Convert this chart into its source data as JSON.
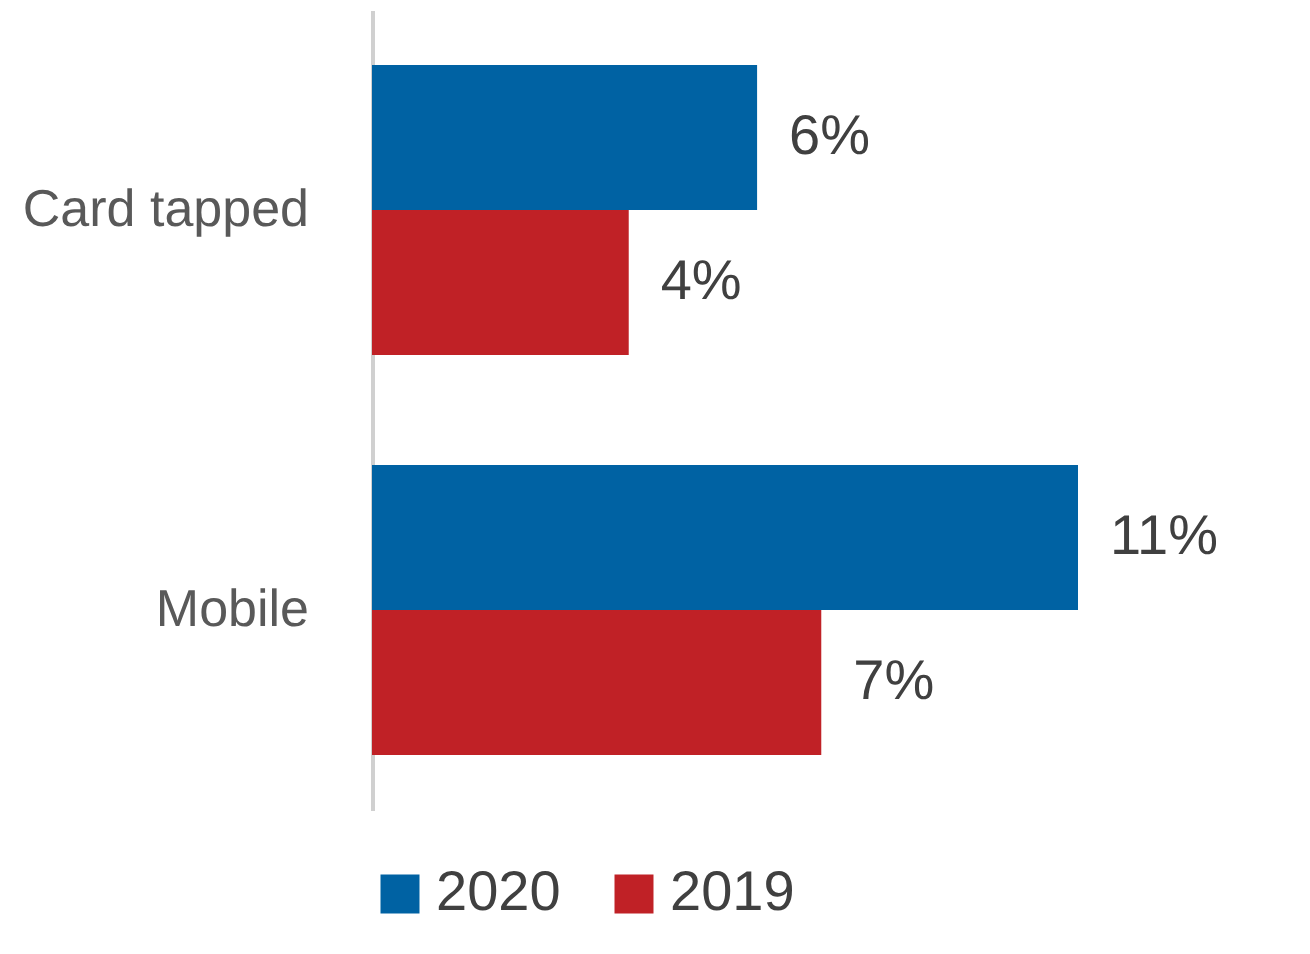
{
  "chart_data": {
    "type": "bar",
    "orientation": "horizontal",
    "categories": [
      "Card tapped",
      "Mobile"
    ],
    "series": [
      {
        "name": "2020",
        "color": "#0062a3",
        "values": [
          6,
          11
        ],
        "value_labels": [
          "6%",
          "11%"
        ]
      },
      {
        "name": "2019",
        "color": "#c02126",
        "values": [
          4,
          7
        ],
        "value_labels": [
          "4%",
          "7%"
        ]
      }
    ],
    "legend": "bottom"
  }
}
